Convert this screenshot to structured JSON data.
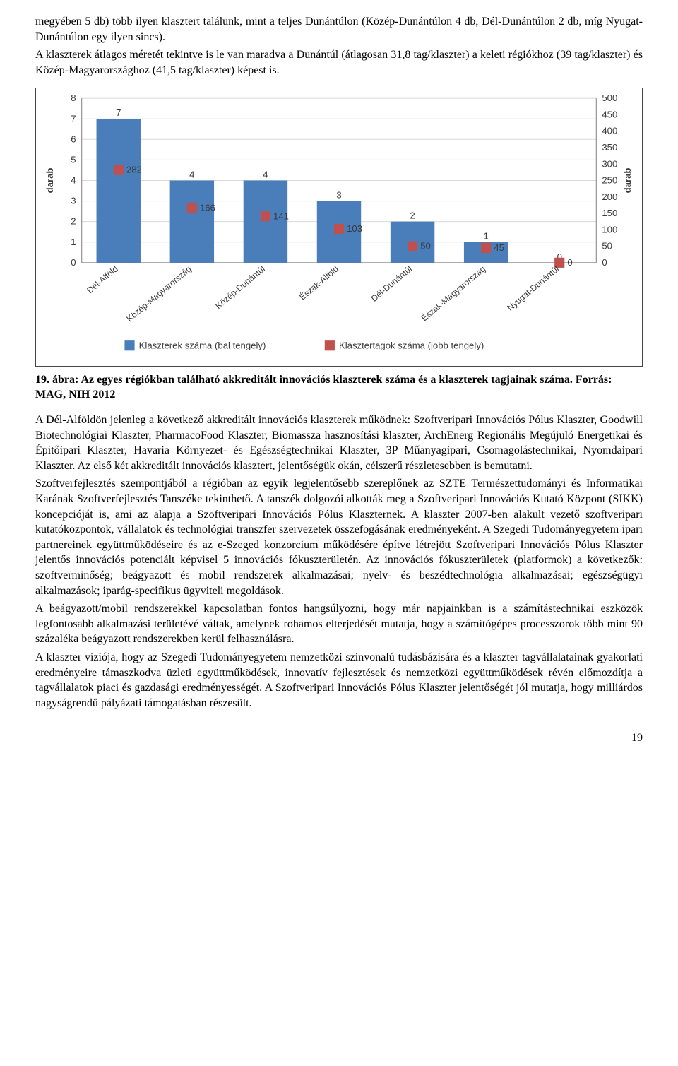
{
  "para1": "megyében 5 db) több ilyen klasztert találunk, mint a teljes Dunántúlon (Közép-Dunántúlon 4 db, Dél-Dunántúlon 2 db, míg Nyugat-Dunántúlon egy ilyen sincs).",
  "para2": "A klaszterek átlagos méretét tekintve is le van maradva a Dunántúl (átlagosan 31,8 tag/klaszter) a keleti régiókhoz (39 tag/klaszter) és Közép-Magyarországhoz (41,5 tag/klaszter) képest is.",
  "chart": {
    "type": "bar",
    "categories": [
      "Dél-Alföld",
      "Közép-Magyarország",
      "Közép-Dunántúl",
      "Észak-Alföld",
      "Dél-Dunántúl",
      "Észak-Magyarország",
      "Nyugat-Dunántúl"
    ],
    "bars": [
      7,
      4,
      4,
      3,
      2,
      1,
      0
    ],
    "markers": [
      282,
      166,
      141,
      103,
      50,
      45,
      0
    ],
    "bar_color": "#4a7ebb",
    "marker_color": "#c0504d",
    "grid_color": "#d9d9d9",
    "axis_color": "#808080",
    "text_color": "#3b3b3b",
    "y_left": {
      "min": 0,
      "max": 8,
      "step": 1,
      "label": "darab"
    },
    "y_right": {
      "min": 0,
      "max": 500,
      "step": 50,
      "label": "darab"
    },
    "legend": [
      {
        "swatch": "bar",
        "color": "#4a7ebb",
        "label": "Klaszterek száma (bal tengely)"
      },
      {
        "swatch": "marker",
        "color": "#c0504d",
        "label": "Klasztertagok száma (jobb tengely)"
      }
    ],
    "bar_width": 0.6,
    "marker_size": 14
  },
  "caption": "19. ábra: Az egyes régiókban található akkreditált innovációs klaszterek száma és a klaszterek tagjainak száma. Forrás: MAG, NIH 2012",
  "para3": "A Dél-Alföldön jelenleg a következő akkreditált innovációs klaszterek működnek: Szoftveripari Innovációs Pólus Klaszter, Goodwill Biotechnológiai Klaszter, PharmacoFood Klaszter, Biomassza hasznosítási klaszter, ArchEnerg Regionális Megújuló Energetikai és Építőipari Klaszter, Havaria Környezet- és Egészségtechnikai Klaszter, 3P Műanyagipari, Csomagolástechnikai, Nyomdaipari Klaszter. Az első két akkreditált innovációs klasztert, jelentőségük okán, célszerű részletesebben is bemutatni.",
  "para4": "Szoftverfejlesztés szempontjából a régióban az egyik legjelentősebb szereplőnek az SZTE Természettudományi és Informatikai Karának Szoftverfejlesztés Tanszéke tekinthető.  A tanszék dolgozói alkották meg a Szoftveripari Innovációs Kutató Központ (SIKK) koncepcióját is, ami az alapja a Szoftveripari Innovációs Pólus Klaszternek. A klaszter 2007-ben alakult vezető szoftveripari kutatóközpontok, vállalatok és technológiai transzfer szervezetek összefogásának eredményeként. A Szegedi Tudományegyetem ipari partnereinek együttműködéseire és az e-Szeged konzorcium működésére építve létrejött Szoftveripari Innovációs Pólus Klaszter jelentős innovációs potenciált képvisel 5 innovációs fókuszterületén. Az innovációs fókuszterületek (platformok) a következők: szoftverminőség; beágyazott és mobil rendszerek alkalmazásai; nyelv- és beszédtechnológia alkalmazásai; egészségügyi alkalmazások; iparág-specifikus ügyviteli megoldások.",
  "para5": "A beágyazott/mobil rendszerekkel kapcsolatban fontos hangsúlyozni, hogy már napjainkban is a számítástechnikai eszközök legfontosabb alkalmazási területévé váltak, amelynek rohamos elterjedését mutatja, hogy a számítógépes processzorok több mint 90 százaléka beágyazott rendszerekben kerül felhasználásra.",
  "para6": "A klaszter víziója, hogy az Szegedi Tudományegyetem nemzetközi színvonalú tudásbázisára és a klaszter tagvállalatainak gyakorlati eredményeire támaszkodva üzleti együttműködések, innovatív fejlesztések és nemzetközi együttműködések révén előmozdítja a tagvállalatok piaci és gazdasági eredményességét. A Szoftveripari Innovációs Pólus Klaszter jelentőségét jól mutatja, hogy milliárdos nagyságrendű pályázati támogatásban részesült.",
  "page_num": "19"
}
